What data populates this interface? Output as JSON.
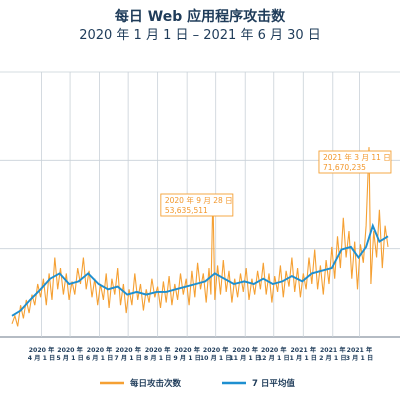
{
  "header": {
    "title": "每日 Web 应用程序攻击数",
    "subtitle": "2020 年 1 月 1 日 – 2021 年 6 月 30 日"
  },
  "colors": {
    "daily": "#f5a033",
    "avg": "#1e8fd0",
    "grid": "#c9d1d8",
    "text": "#1f3c5a"
  },
  "chart_data": {
    "type": "line",
    "title": "每日 Web 应用程序攻击数",
    "subtitle": "2020 年 1 月 1 日 – 2021 年 6 月 30 日",
    "x_range": [
      "2020-03-01",
      "2021-03-31"
    ],
    "ylim": [
      0,
      100000000
    ],
    "grid": true,
    "legend_position": "bottom",
    "x_ticks": [
      {
        "date": "2020-04-01",
        "line1": "2020 年",
        "line2": "4 月 1 日"
      },
      {
        "date": "2020-05-01",
        "line1": "2020 年",
        "line2": "5 月 1 日"
      },
      {
        "date": "2020-06-01",
        "line1": "2020 年",
        "line2": "6 月 1 日"
      },
      {
        "date": "2020-07-01",
        "line1": "2020 年",
        "line2": "7 月 1 日"
      },
      {
        "date": "2020-08-01",
        "line1": "2020 年",
        "line2": "8 月 1 日"
      },
      {
        "date": "2020-09-01",
        "line1": "2020 年",
        "line2": "9 月 1 日"
      },
      {
        "date": "2020-10-01",
        "line1": "2020 年",
        "line2": "10 月 1 日"
      },
      {
        "date": "2020-11-01",
        "line1": "2020 年",
        "line2": "11 月 1 日"
      },
      {
        "date": "2020-12-01",
        "line1": "2020 年",
        "line2": "12 月 1 日"
      },
      {
        "date": "2021-01-01",
        "line1": "2021 年",
        "line2": "1 月 1 日"
      },
      {
        "date": "2021-02-01",
        "line1": "2021 年",
        "line2": "2 月 1 日"
      },
      {
        "date": "2021-03-01",
        "line1": "2021 年",
        "line2": "3 月 1 日"
      }
    ],
    "series": [
      {
        "name": "每日攻击次数",
        "points": [
          [
            "2020-03-01",
            5000000
          ],
          [
            "2020-03-04",
            8000000
          ],
          [
            "2020-03-07",
            4000000
          ],
          [
            "2020-03-10",
            12000000
          ],
          [
            "2020-03-13",
            7000000
          ],
          [
            "2020-03-16",
            14000000
          ],
          [
            "2020-03-19",
            9000000
          ],
          [
            "2020-03-22",
            16000000
          ],
          [
            "2020-03-25",
            12000000
          ],
          [
            "2020-03-28",
            20000000
          ],
          [
            "2020-03-31",
            15000000
          ],
          [
            "2020-04-03",
            22000000
          ],
          [
            "2020-04-06",
            12000000
          ],
          [
            "2020-04-09",
            24000000
          ],
          [
            "2020-04-12",
            14000000
          ],
          [
            "2020-04-15",
            30000000
          ],
          [
            "2020-04-18",
            18000000
          ],
          [
            "2020-04-21",
            26000000
          ],
          [
            "2020-04-24",
            16000000
          ],
          [
            "2020-04-27",
            24000000
          ],
          [
            "2020-04-30",
            14000000
          ],
          [
            "2020-05-03",
            21000000
          ],
          [
            "2020-05-06",
            16000000
          ],
          [
            "2020-05-09",
            26000000
          ],
          [
            "2020-05-12",
            20000000
          ],
          [
            "2020-05-15",
            30000000
          ],
          [
            "2020-05-18",
            18000000
          ],
          [
            "2020-05-21",
            25000000
          ],
          [
            "2020-05-24",
            15000000
          ],
          [
            "2020-05-27",
            22000000
          ],
          [
            "2020-05-30",
            12000000
          ],
          [
            "2020-06-02",
            20000000
          ],
          [
            "2020-06-05",
            14000000
          ],
          [
            "2020-06-08",
            24000000
          ],
          [
            "2020-06-11",
            11000000
          ],
          [
            "2020-06-14",
            22000000
          ],
          [
            "2020-06-17",
            16000000
          ],
          [
            "2020-06-20",
            26000000
          ],
          [
            "2020-06-23",
            12000000
          ],
          [
            "2020-06-26",
            20000000
          ],
          [
            "2020-06-29",
            9000000
          ],
          [
            "2020-07-02",
            18000000
          ],
          [
            "2020-07-05",
            12000000
          ],
          [
            "2020-07-08",
            24000000
          ],
          [
            "2020-07-11",
            14000000
          ],
          [
            "2020-07-14",
            20000000
          ],
          [
            "2020-07-17",
            10000000
          ],
          [
            "2020-07-20",
            18000000
          ],
          [
            "2020-07-23",
            13000000
          ],
          [
            "2020-07-26",
            22000000
          ],
          [
            "2020-07-29",
            15000000
          ],
          [
            "2020-08-01",
            19000000
          ],
          [
            "2020-08-04",
            11000000
          ],
          [
            "2020-08-07",
            21000000
          ],
          [
            "2020-08-10",
            13000000
          ],
          [
            "2020-08-13",
            23000000
          ],
          [
            "2020-08-16",
            12000000
          ],
          [
            "2020-08-19",
            20000000
          ],
          [
            "2020-08-22",
            14000000
          ],
          [
            "2020-08-25",
            24000000
          ],
          [
            "2020-08-28",
            16000000
          ],
          [
            "2020-08-31",
            22000000
          ],
          [
            "2020-09-03",
            12000000
          ],
          [
            "2020-09-06",
            25000000
          ],
          [
            "2020-09-09",
            15000000
          ],
          [
            "2020-09-12",
            28000000
          ],
          [
            "2020-09-15",
            18000000
          ],
          [
            "2020-09-18",
            24000000
          ],
          [
            "2020-09-21",
            13000000
          ],
          [
            "2020-09-24",
            26000000
          ],
          [
            "2020-09-26",
            16000000
          ],
          [
            "2020-09-28",
            53635511
          ],
          [
            "2020-09-30",
            14000000
          ],
          [
            "2020-10-03",
            27000000
          ],
          [
            "2020-10-06",
            16000000
          ],
          [
            "2020-10-09",
            29000000
          ],
          [
            "2020-10-12",
            17000000
          ],
          [
            "2020-10-15",
            25000000
          ],
          [
            "2020-10-18",
            13000000
          ],
          [
            "2020-10-21",
            22000000
          ],
          [
            "2020-10-24",
            15000000
          ],
          [
            "2020-10-27",
            24000000
          ],
          [
            "2020-10-30",
            17000000
          ],
          [
            "2020-11-02",
            26000000
          ],
          [
            "2020-11-05",
            14000000
          ],
          [
            "2020-11-08",
            22000000
          ],
          [
            "2020-11-11",
            16000000
          ],
          [
            "2020-11-14",
            25000000
          ],
          [
            "2020-11-17",
            18000000
          ],
          [
            "2020-11-20",
            28000000
          ],
          [
            "2020-11-23",
            16000000
          ],
          [
            "2020-11-26",
            24000000
          ],
          [
            "2020-11-29",
            13000000
          ],
          [
            "2020-12-02",
            23000000
          ],
          [
            "2020-12-05",
            17000000
          ],
          [
            "2020-12-08",
            27000000
          ],
          [
            "2020-12-11",
            15000000
          ],
          [
            "2020-12-14",
            25000000
          ],
          [
            "2020-12-17",
            19000000
          ],
          [
            "2020-12-20",
            30000000
          ],
          [
            "2020-12-23",
            17000000
          ],
          [
            "2020-12-26",
            26000000
          ],
          [
            "2020-12-29",
            15000000
          ],
          [
            "2021-01-01",
            24000000
          ],
          [
            "2021-01-04",
            18000000
          ],
          [
            "2021-01-07",
            30000000
          ],
          [
            "2021-01-10",
            20000000
          ],
          [
            "2021-01-13",
            33000000
          ],
          [
            "2021-01-16",
            18000000
          ],
          [
            "2021-01-19",
            27000000
          ],
          [
            "2021-01-22",
            16000000
          ],
          [
            "2021-01-25",
            29000000
          ],
          [
            "2021-01-28",
            20000000
          ],
          [
            "2021-01-31",
            34000000
          ],
          [
            "2021-02-03",
            22000000
          ],
          [
            "2021-02-06",
            38000000
          ],
          [
            "2021-02-09",
            26000000
          ],
          [
            "2021-02-12",
            45000000
          ],
          [
            "2021-02-15",
            30000000
          ],
          [
            "2021-02-18",
            40000000
          ],
          [
            "2021-02-21",
            22000000
          ],
          [
            "2021-02-24",
            36000000
          ],
          [
            "2021-02-27",
            18000000
          ],
          [
            "2021-03-02",
            35000000
          ],
          [
            "2021-03-05",
            28000000
          ],
          [
            "2021-03-08",
            42000000
          ],
          [
            "2021-03-11",
            71670235
          ],
          [
            "2021-03-13",
            20000000
          ],
          [
            "2021-03-16",
            40000000
          ],
          [
            "2021-03-19",
            30000000
          ],
          [
            "2021-03-22",
            48000000
          ],
          [
            "2021-03-25",
            26000000
          ],
          [
            "2021-03-28",
            42000000
          ],
          [
            "2021-03-31",
            34000000
          ]
        ]
      },
      {
        "name": "7 日平均值",
        "points": [
          [
            "2020-03-01",
            8000000
          ],
          [
            "2020-03-10",
            10000000
          ],
          [
            "2020-03-20",
            14000000
          ],
          [
            "2020-03-31",
            18000000
          ],
          [
            "2020-04-10",
            22000000
          ],
          [
            "2020-04-20",
            24000000
          ],
          [
            "2020-04-30",
            20000000
          ],
          [
            "2020-05-10",
            21000000
          ],
          [
            "2020-05-20",
            24000000
          ],
          [
            "2020-05-31",
            20000000
          ],
          [
            "2020-06-10",
            18000000
          ],
          [
            "2020-06-20",
            19000000
          ],
          [
            "2020-06-30",
            16000000
          ],
          [
            "2020-07-10",
            17000000
          ],
          [
            "2020-07-20",
            16000000
          ],
          [
            "2020-07-31",
            17000000
          ],
          [
            "2020-08-10",
            17000000
          ],
          [
            "2020-08-20",
            18000000
          ],
          [
            "2020-08-31",
            19000000
          ],
          [
            "2020-09-10",
            20000000
          ],
          [
            "2020-09-20",
            21000000
          ],
          [
            "2020-09-30",
            24000000
          ],
          [
            "2020-10-10",
            22000000
          ],
          [
            "2020-10-20",
            20000000
          ],
          [
            "2020-10-31",
            21000000
          ],
          [
            "2020-11-10",
            20000000
          ],
          [
            "2020-11-20",
            22000000
          ],
          [
            "2020-11-30",
            20000000
          ],
          [
            "2020-12-10",
            21000000
          ],
          [
            "2020-12-20",
            23000000
          ],
          [
            "2020-12-31",
            21000000
          ],
          [
            "2021-01-10",
            24000000
          ],
          [
            "2021-01-20",
            25000000
          ],
          [
            "2021-01-31",
            26000000
          ],
          [
            "2021-02-10",
            33000000
          ],
          [
            "2021-02-20",
            34000000
          ],
          [
            "2021-02-28",
            30000000
          ],
          [
            "2021-03-08",
            34000000
          ],
          [
            "2021-03-15",
            42000000
          ],
          [
            "2021-03-22",
            36000000
          ],
          [
            "2021-03-31",
            38000000
          ]
        ]
      }
    ],
    "annotations": [
      {
        "date": "2020-09-28",
        "value": 53635511,
        "label_date": "2020 年 9 月 28 日",
        "label_value": "53,635,511"
      },
      {
        "date": "2021-03-11",
        "value": 71670235,
        "label_date": "2021 年 3 月 11 日",
        "label_value": "71,670,235"
      }
    ]
  }
}
